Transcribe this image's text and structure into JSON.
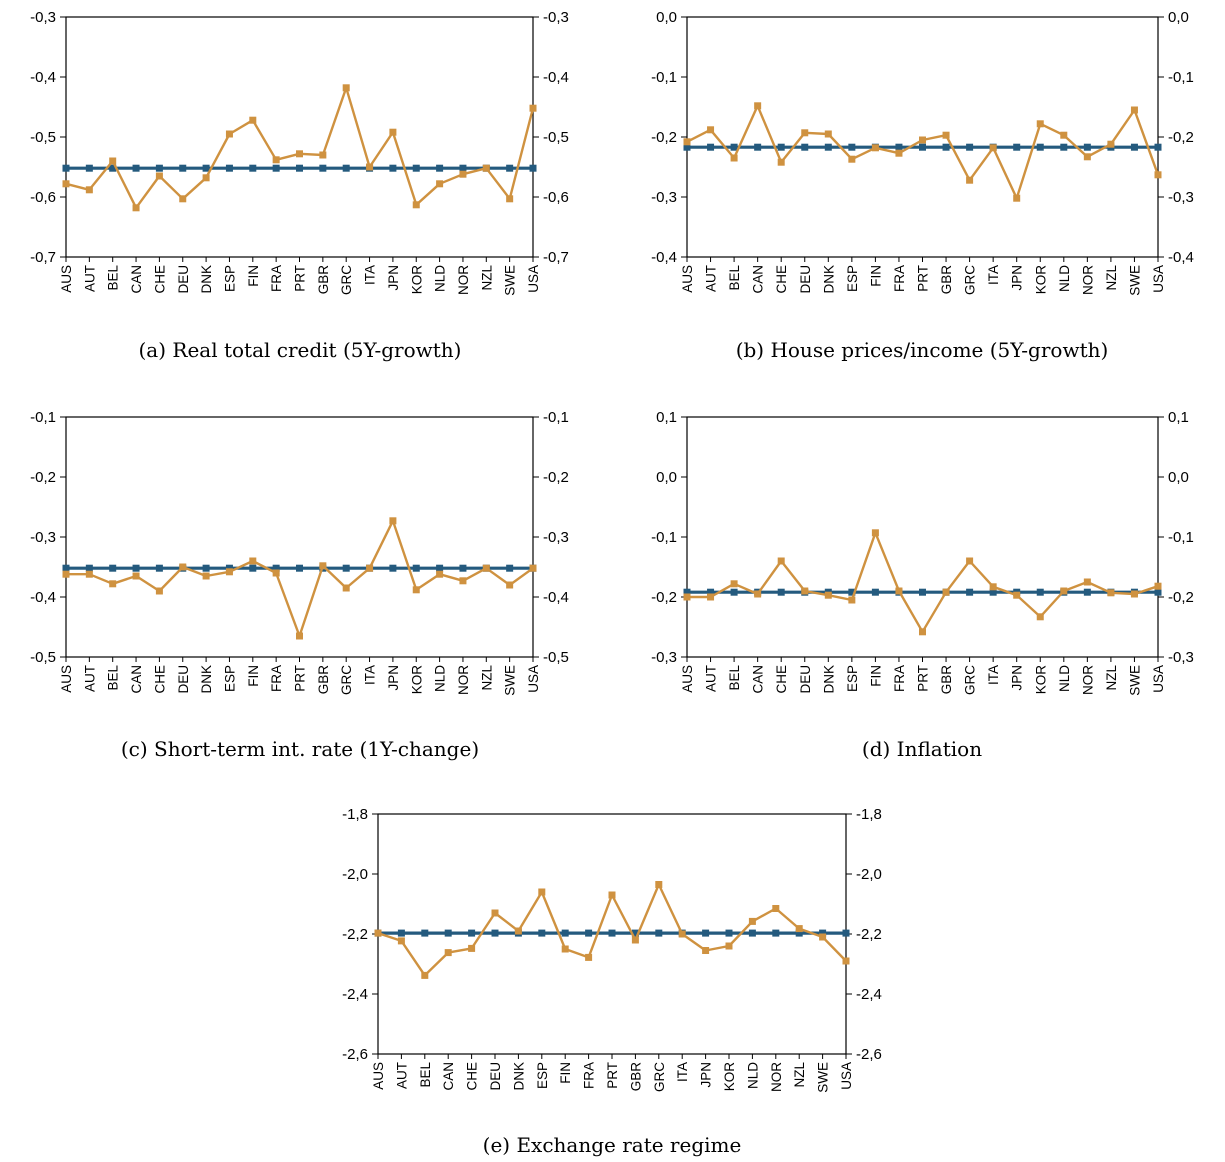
{
  "colors": {
    "flat_series": "#245a7e",
    "country_series": "#cf9240",
    "axis": "#000000"
  },
  "panels": [
    {
      "caption": "(a) Real total credit (5Y-growth)"
    },
    {
      "caption": "(b) House prices/income (5Y-growth)"
    },
    {
      "caption": "(c) Short-term int. rate (1Y-change)"
    },
    {
      "caption": "(d) Inflation"
    },
    {
      "caption": "(e) Exchange rate regime"
    }
  ],
  "chart_data": [
    {
      "type": "line",
      "title": "(a) Real total credit (5Y-growth)",
      "categories": [
        "AUS",
        "AUT",
        "BEL",
        "CAN",
        "CHE",
        "DEU",
        "DNK",
        "ESP",
        "FIN",
        "FRA",
        "PRT",
        "GBR",
        "GRC",
        "ITA",
        "JPN",
        "KOR",
        "NLD",
        "NOR",
        "NZL",
        "SWE",
        "USA"
      ],
      "ylim": [
        -0.7,
        -0.3
      ],
      "yticks": [
        -0.3,
        -0.4,
        -0.5,
        -0.6,
        -0.7
      ],
      "ytick_labels": [
        "-0,3",
        "-0,4",
        "-0,5",
        "-0,6",
        "-0,7"
      ],
      "series": [
        {
          "values": [
            -0.552,
            -0.552,
            -0.552,
            -0.552,
            -0.552,
            -0.552,
            -0.552,
            -0.552,
            -0.552,
            -0.552,
            -0.552,
            -0.552,
            -0.552,
            -0.552,
            -0.552,
            -0.552,
            -0.552,
            -0.552,
            -0.552,
            -0.552,
            -0.552
          ]
        },
        {
          "values": [
            -0.578,
            -0.588,
            -0.54,
            -0.618,
            -0.565,
            -0.603,
            -0.568,
            -0.495,
            -0.472,
            -0.538,
            -0.528,
            -0.53,
            -0.418,
            -0.55,
            -0.492,
            -0.613,
            -0.578,
            -0.562,
            -0.552,
            -0.603,
            -0.452
          ]
        }
      ]
    },
    {
      "type": "line",
      "title": "(b) House prices/income (5Y-growth)",
      "categories": [
        "AUS",
        "AUT",
        "BEL",
        "CAN",
        "CHE",
        "DEU",
        "DNK",
        "ESP",
        "FIN",
        "FRA",
        "PRT",
        "GBR",
        "GRC",
        "ITA",
        "JPN",
        "KOR",
        "NLD",
        "NOR",
        "NZL",
        "SWE",
        "USA"
      ],
      "ylim": [
        -0.4,
        0.0
      ],
      "yticks": [
        0.0,
        -0.1,
        -0.2,
        -0.3,
        -0.4
      ],
      "ytick_labels": [
        "0,0",
        "-0,1",
        "-0,2",
        "-0,3",
        "-0,4"
      ],
      "series": [
        {
          "values": [
            -0.217,
            -0.217,
            -0.217,
            -0.217,
            -0.217,
            -0.217,
            -0.217,
            -0.217,
            -0.217,
            -0.217,
            -0.217,
            -0.217,
            -0.217,
            -0.217,
            -0.217,
            -0.217,
            -0.217,
            -0.217,
            -0.217,
            -0.217,
            -0.217
          ]
        },
        {
          "values": [
            -0.208,
            -0.188,
            -0.235,
            -0.148,
            -0.242,
            -0.193,
            -0.195,
            -0.237,
            -0.218,
            -0.227,
            -0.205,
            -0.197,
            -0.272,
            -0.218,
            -0.302,
            -0.178,
            -0.197,
            -0.233,
            -0.212,
            -0.155,
            -0.263
          ]
        }
      ]
    },
    {
      "type": "line",
      "title": "(c) Short-term int. rate (1Y-change)",
      "categories": [
        "AUS",
        "AUT",
        "BEL",
        "CAN",
        "CHE",
        "DEU",
        "DNK",
        "ESP",
        "FIN",
        "FRA",
        "PRT",
        "GBR",
        "GRC",
        "ITA",
        "JPN",
        "KOR",
        "NLD",
        "NOR",
        "NZL",
        "SWE",
        "USA"
      ],
      "ylim": [
        -0.5,
        -0.1
      ],
      "yticks": [
        -0.1,
        -0.2,
        -0.3,
        -0.4,
        -0.5
      ],
      "ytick_labels": [
        "-0,1",
        "-0,2",
        "-0,3",
        "-0,4",
        "-0,5"
      ],
      "series": [
        {
          "values": [
            -0.352,
            -0.352,
            -0.352,
            -0.352,
            -0.352,
            -0.352,
            -0.352,
            -0.352,
            -0.352,
            -0.352,
            -0.352,
            -0.352,
            -0.352,
            -0.352,
            -0.352,
            -0.352,
            -0.352,
            -0.352,
            -0.352,
            -0.352,
            -0.352
          ]
        },
        {
          "values": [
            -0.362,
            -0.362,
            -0.378,
            -0.365,
            -0.39,
            -0.35,
            -0.365,
            -0.358,
            -0.34,
            -0.36,
            -0.465,
            -0.348,
            -0.385,
            -0.352,
            -0.273,
            -0.388,
            -0.362,
            -0.373,
            -0.352,
            -0.38,
            -0.352
          ]
        }
      ]
    },
    {
      "type": "line",
      "title": "(d) Inflation",
      "categories": [
        "AUS",
        "AUT",
        "BEL",
        "CAN",
        "CHE",
        "DEU",
        "DNK",
        "ESP",
        "FIN",
        "FRA",
        "PRT",
        "GBR",
        "GRC",
        "ITA",
        "JPN",
        "KOR",
        "NLD",
        "NOR",
        "NZL",
        "SWE",
        "USA"
      ],
      "ylim": [
        -0.3,
        0.1
      ],
      "yticks": [
        0.1,
        0.0,
        -0.1,
        -0.2,
        -0.3
      ],
      "ytick_labels": [
        "0,1",
        "0,0",
        "-0,1",
        "-0,2",
        "-0,3"
      ],
      "series": [
        {
          "values": [
            -0.192,
            -0.192,
            -0.192,
            -0.192,
            -0.192,
            -0.192,
            -0.192,
            -0.192,
            -0.192,
            -0.192,
            -0.192,
            -0.192,
            -0.192,
            -0.192,
            -0.192,
            -0.192,
            -0.192,
            -0.192,
            -0.192,
            -0.192,
            -0.192
          ]
        },
        {
          "values": [
            -0.2,
            -0.2,
            -0.178,
            -0.195,
            -0.14,
            -0.19,
            -0.197,
            -0.205,
            -0.093,
            -0.19,
            -0.258,
            -0.192,
            -0.14,
            -0.183,
            -0.197,
            -0.233,
            -0.19,
            -0.175,
            -0.193,
            -0.195,
            -0.182
          ]
        }
      ]
    },
    {
      "type": "line",
      "title": "(e) Exchange rate regime",
      "categories": [
        "AUS",
        "AUT",
        "BEL",
        "CAN",
        "CHE",
        "DEU",
        "DNK",
        "ESP",
        "FIN",
        "FRA",
        "PRT",
        "GBR",
        "GRC",
        "ITA",
        "JPN",
        "KOR",
        "NLD",
        "NOR",
        "NZL",
        "SWE",
        "USA"
      ],
      "ylim": [
        -2.6,
        -1.8
      ],
      "yticks": [
        -1.8,
        -2.0,
        -2.2,
        -2.4,
        -2.6
      ],
      "ytick_labels": [
        "-1,8",
        "-2,0",
        "-2,2",
        "-2,4",
        "-2,6"
      ],
      "series": [
        {
          "values": [
            -2.197,
            -2.197,
            -2.197,
            -2.197,
            -2.197,
            -2.197,
            -2.197,
            -2.197,
            -2.197,
            -2.197,
            -2.197,
            -2.197,
            -2.197,
            -2.197,
            -2.197,
            -2.197,
            -2.197,
            -2.197,
            -2.197,
            -2.197,
            -2.197
          ]
        },
        {
          "values": [
            -2.197,
            -2.223,
            -2.338,
            -2.262,
            -2.248,
            -2.13,
            -2.19,
            -2.06,
            -2.25,
            -2.278,
            -2.07,
            -2.22,
            -2.035,
            -2.2,
            -2.255,
            -2.24,
            -2.158,
            -2.115,
            -2.182,
            -2.21,
            -2.29
          ]
        }
      ]
    }
  ]
}
